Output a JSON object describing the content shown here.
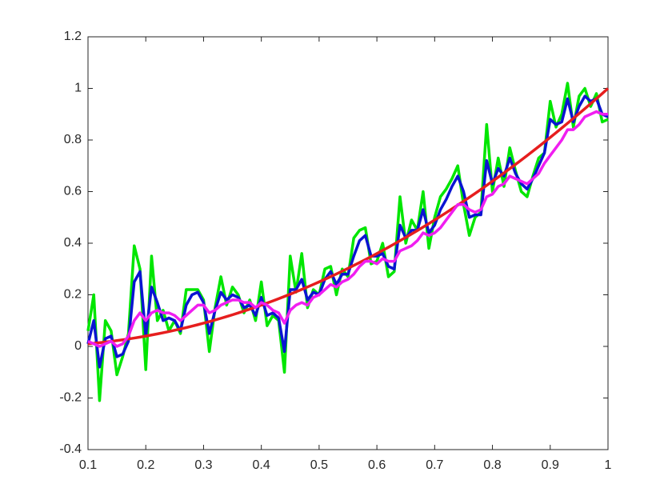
{
  "chart_data": {
    "type": "line",
    "x": [
      0.1,
      0.11,
      0.12,
      0.13,
      0.14,
      0.15,
      0.16,
      0.17,
      0.18,
      0.19,
      0.2,
      0.21,
      0.22,
      0.23,
      0.24,
      0.25,
      0.26,
      0.27,
      0.28,
      0.29,
      0.3,
      0.31,
      0.32,
      0.33,
      0.34,
      0.35,
      0.36,
      0.37,
      0.38,
      0.39,
      0.4,
      0.41,
      0.42,
      0.43,
      0.44,
      0.45,
      0.46,
      0.47,
      0.48,
      0.49,
      0.5,
      0.51,
      0.52,
      0.53,
      0.54,
      0.55,
      0.56,
      0.57,
      0.58,
      0.59,
      0.6,
      0.61,
      0.62,
      0.63,
      0.64,
      0.65,
      0.66,
      0.67,
      0.68,
      0.69,
      0.7,
      0.71,
      0.72,
      0.73,
      0.74,
      0.75,
      0.76,
      0.77,
      0.78,
      0.79,
      0.8,
      0.81,
      0.82,
      0.83,
      0.84,
      0.85,
      0.86,
      0.87,
      0.88,
      0.89,
      0.9,
      0.91,
      0.92,
      0.93,
      0.94,
      0.95,
      0.96,
      0.97,
      0.98,
      0.99,
      1
    ],
    "series": [
      {
        "color": "#00e600",
        "values": [
          0.06,
          0.2,
          -0.21,
          0.1,
          0.06,
          -0.11,
          -0.04,
          0.05,
          0.39,
          0.3,
          -0.09,
          0.35,
          0.1,
          0.14,
          0.06,
          0.1,
          0.05,
          0.22,
          0.22,
          0.22,
          0.18,
          -0.02,
          0.15,
          0.27,
          0.16,
          0.23,
          0.2,
          0.13,
          0.18,
          0.1,
          0.25,
          0.08,
          0.12,
          0.1,
          -0.1,
          0.35,
          0.21,
          0.36,
          0.15,
          0.22,
          0.2,
          0.3,
          0.31,
          0.2,
          0.3,
          0.27,
          0.42,
          0.45,
          0.46,
          0.32,
          0.33,
          0.4,
          0.27,
          0.29,
          0.58,
          0.4,
          0.49,
          0.45,
          0.6,
          0.38,
          0.5,
          0.58,
          0.61,
          0.65,
          0.7,
          0.55,
          0.43,
          0.5,
          0.52,
          0.86,
          0.6,
          0.73,
          0.62,
          0.77,
          0.68,
          0.6,
          0.58,
          0.66,
          0.73,
          0.75,
          0.95,
          0.85,
          0.9,
          1.02,
          0.85,
          0.97,
          1.0,
          0.93,
          0.98,
          0.87,
          0.88
        ]
      },
      {
        "color": "#0a14d2",
        "values": [
          0.01,
          0.1,
          -0.08,
          0.03,
          0.04,
          -0.04,
          -0.03,
          0.02,
          0.25,
          0.29,
          0.04,
          0.23,
          0.17,
          0.1,
          0.11,
          0.1,
          0.06,
          0.16,
          0.2,
          0.21,
          0.17,
          0.05,
          0.14,
          0.21,
          0.18,
          0.2,
          0.19,
          0.15,
          0.16,
          0.12,
          0.19,
          0.12,
          0.13,
          0.11,
          -0.02,
          0.22,
          0.22,
          0.26,
          0.18,
          0.21,
          0.2,
          0.26,
          0.29,
          0.24,
          0.28,
          0.28,
          0.35,
          0.41,
          0.43,
          0.35,
          0.35,
          0.36,
          0.31,
          0.3,
          0.47,
          0.42,
          0.45,
          0.45,
          0.53,
          0.44,
          0.47,
          0.53,
          0.57,
          0.62,
          0.66,
          0.6,
          0.5,
          0.51,
          0.51,
          0.72,
          0.63,
          0.69,
          0.66,
          0.73,
          0.67,
          0.63,
          0.61,
          0.65,
          0.7,
          0.75,
          0.88,
          0.86,
          0.87,
          0.96,
          0.87,
          0.93,
          0.97,
          0.95,
          0.96,
          0.9,
          0.89
        ]
      },
      {
        "color": "#e61e1e",
        "values": [
          0.01,
          0.0121,
          0.0144,
          0.0169,
          0.0196,
          0.0225,
          0.0256,
          0.0289,
          0.0324,
          0.0361,
          0.04,
          0.0441,
          0.0484,
          0.0529,
          0.0576,
          0.0625,
          0.0676,
          0.0729,
          0.0784,
          0.0841,
          0.09,
          0.0961,
          0.1024,
          0.1089,
          0.1156,
          0.1225,
          0.1296,
          0.1369,
          0.1444,
          0.1521,
          0.16,
          0.1681,
          0.1764,
          0.1849,
          0.1936,
          0.2025,
          0.2116,
          0.2209,
          0.2304,
          0.2401,
          0.25,
          0.2601,
          0.2704,
          0.2809,
          0.2916,
          0.3025,
          0.3136,
          0.3249,
          0.3364,
          0.3481,
          0.36,
          0.3721,
          0.3844,
          0.3969,
          0.4096,
          0.4225,
          0.4356,
          0.4489,
          0.4624,
          0.4761,
          0.49,
          0.5041,
          0.5184,
          0.5329,
          0.5476,
          0.5625,
          0.5776,
          0.5929,
          0.6084,
          0.6241,
          0.64,
          0.6561,
          0.6724,
          0.6889,
          0.7056,
          0.7225,
          0.7396,
          0.7569,
          0.7744,
          0.7921,
          0.81,
          0.8281,
          0.8464,
          0.8649,
          0.8836,
          0.9025,
          0.9216,
          0.9409,
          0.9604,
          0.9801,
          1
        ]
      },
      {
        "color": "#f01ef0",
        "values": [
          0.02,
          0.01,
          0.0,
          0.01,
          0.02,
          0.0,
          0.01,
          0.04,
          0.1,
          0.13,
          0.1,
          0.13,
          0.14,
          0.13,
          0.13,
          0.12,
          0.1,
          0.12,
          0.14,
          0.16,
          0.16,
          0.13,
          0.14,
          0.16,
          0.17,
          0.18,
          0.18,
          0.17,
          0.17,
          0.15,
          0.17,
          0.16,
          0.14,
          0.13,
          0.09,
          0.14,
          0.16,
          0.17,
          0.16,
          0.19,
          0.2,
          0.22,
          0.24,
          0.23,
          0.25,
          0.26,
          0.28,
          0.31,
          0.33,
          0.33,
          0.32,
          0.34,
          0.33,
          0.33,
          0.37,
          0.38,
          0.39,
          0.41,
          0.44,
          0.43,
          0.44,
          0.46,
          0.49,
          0.52,
          0.55,
          0.55,
          0.53,
          0.52,
          0.53,
          0.58,
          0.59,
          0.62,
          0.63,
          0.66,
          0.65,
          0.64,
          0.63,
          0.65,
          0.67,
          0.71,
          0.74,
          0.77,
          0.8,
          0.84,
          0.84,
          0.86,
          0.89,
          0.9,
          0.91,
          0.9,
          0.9
        ]
      }
    ],
    "xlim": [
      0.1,
      1
    ],
    "xticks": [
      0.1,
      0.2,
      0.3,
      0.4,
      0.5,
      0.6,
      0.7,
      0.8,
      0.9,
      1
    ],
    "ylim": [
      -0.4,
      1.2
    ],
    "yticks": [
      -0.4,
      -0.2,
      0,
      0.2,
      0.4,
      0.6,
      0.8,
      1,
      1.2
    ],
    "grid": false
  }
}
